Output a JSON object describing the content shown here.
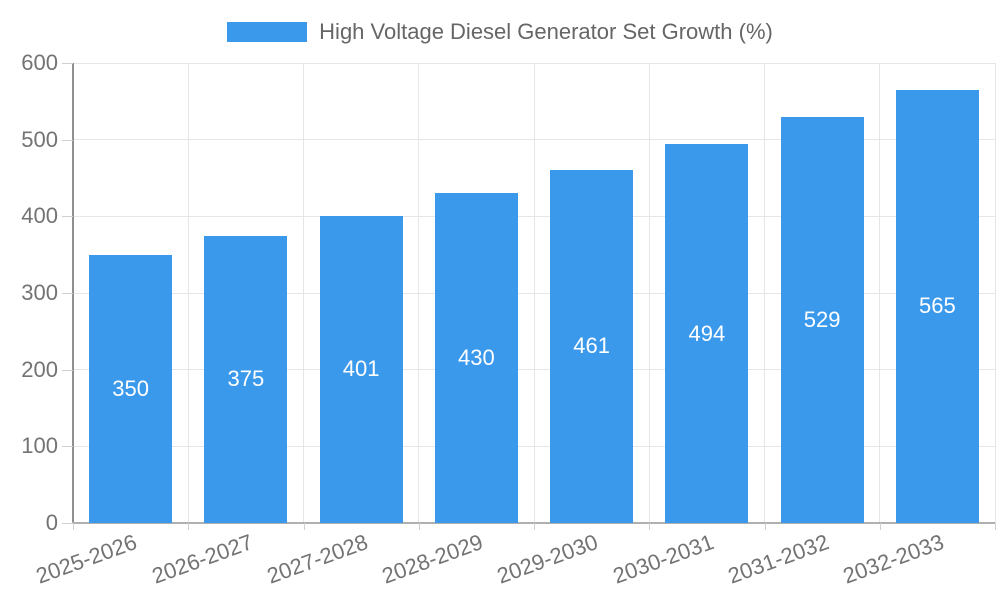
{
  "chart_data": {
    "type": "bar",
    "title": "High Voltage Diesel Generator Set Growth (%)",
    "categories": [
      "2025-2026",
      "2026-2027",
      "2027-2028",
      "2028-2029",
      "2029-2030",
      "2030-2031",
      "2031-2032",
      "2032-2033"
    ],
    "values": [
      350,
      375,
      401,
      430,
      461,
      494,
      529,
      565
    ],
    "yticks": [
      0,
      100,
      200,
      300,
      400,
      500,
      600
    ],
    "ylim": [
      0,
      600
    ],
    "grid": true,
    "legend_position": "top-center",
    "x_label_rotation_deg": -20,
    "value_labels_position": "inside-center",
    "colors": {
      "bar": "#3b99ec",
      "value_label": "#ffffff",
      "legend_text": "#666666",
      "tick_text": "#737373",
      "gridline": "#e6e6e6",
      "y_axis_line": "#8f8f8f",
      "x_axis_line": "#b0b0b0",
      "tick_mark": "#cfcfcf",
      "background": "#ffffff"
    }
  }
}
